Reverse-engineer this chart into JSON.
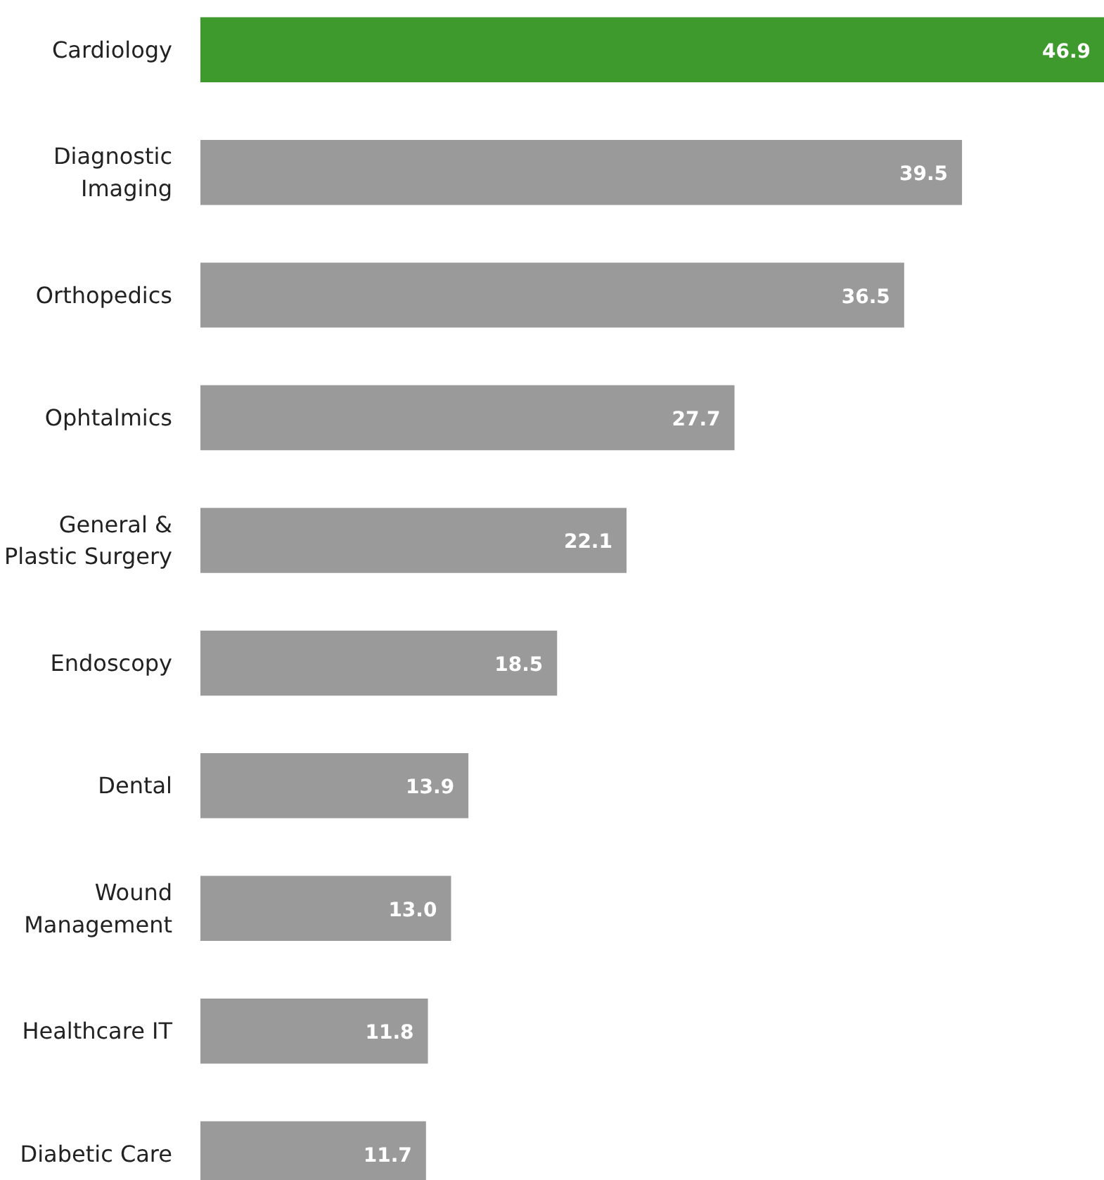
{
  "chart_data": {
    "type": "bar",
    "orientation": "horizontal",
    "categories": [
      "Cardiology",
      "Diagnostic\nImaging",
      "Orthopedics",
      "Ophtalmics",
      "General &\nPlastic Surgery",
      "Endoscopy",
      "Dental",
      "Wound\nManagement",
      "Healthcare IT",
      "Diabetic Care"
    ],
    "values": [
      46.9,
      39.5,
      36.5,
      27.7,
      22.1,
      18.5,
      13.9,
      13.0,
      11.8,
      11.7
    ],
    "value_labels": [
      "46.9",
      "39.5",
      "36.5",
      "27.7",
      "22.1",
      "18.5",
      "13.9",
      "13.0",
      "11.8",
      "11.7"
    ],
    "colors": [
      "#3f9a2e",
      "#9a9a9b",
      "#9a9a9b",
      "#9a9a9b",
      "#9a9a9b",
      "#9a9a9b",
      "#9a9a9b",
      "#9a9a9b",
      "#9a9a9b",
      "#9a9a9b"
    ]
  }
}
